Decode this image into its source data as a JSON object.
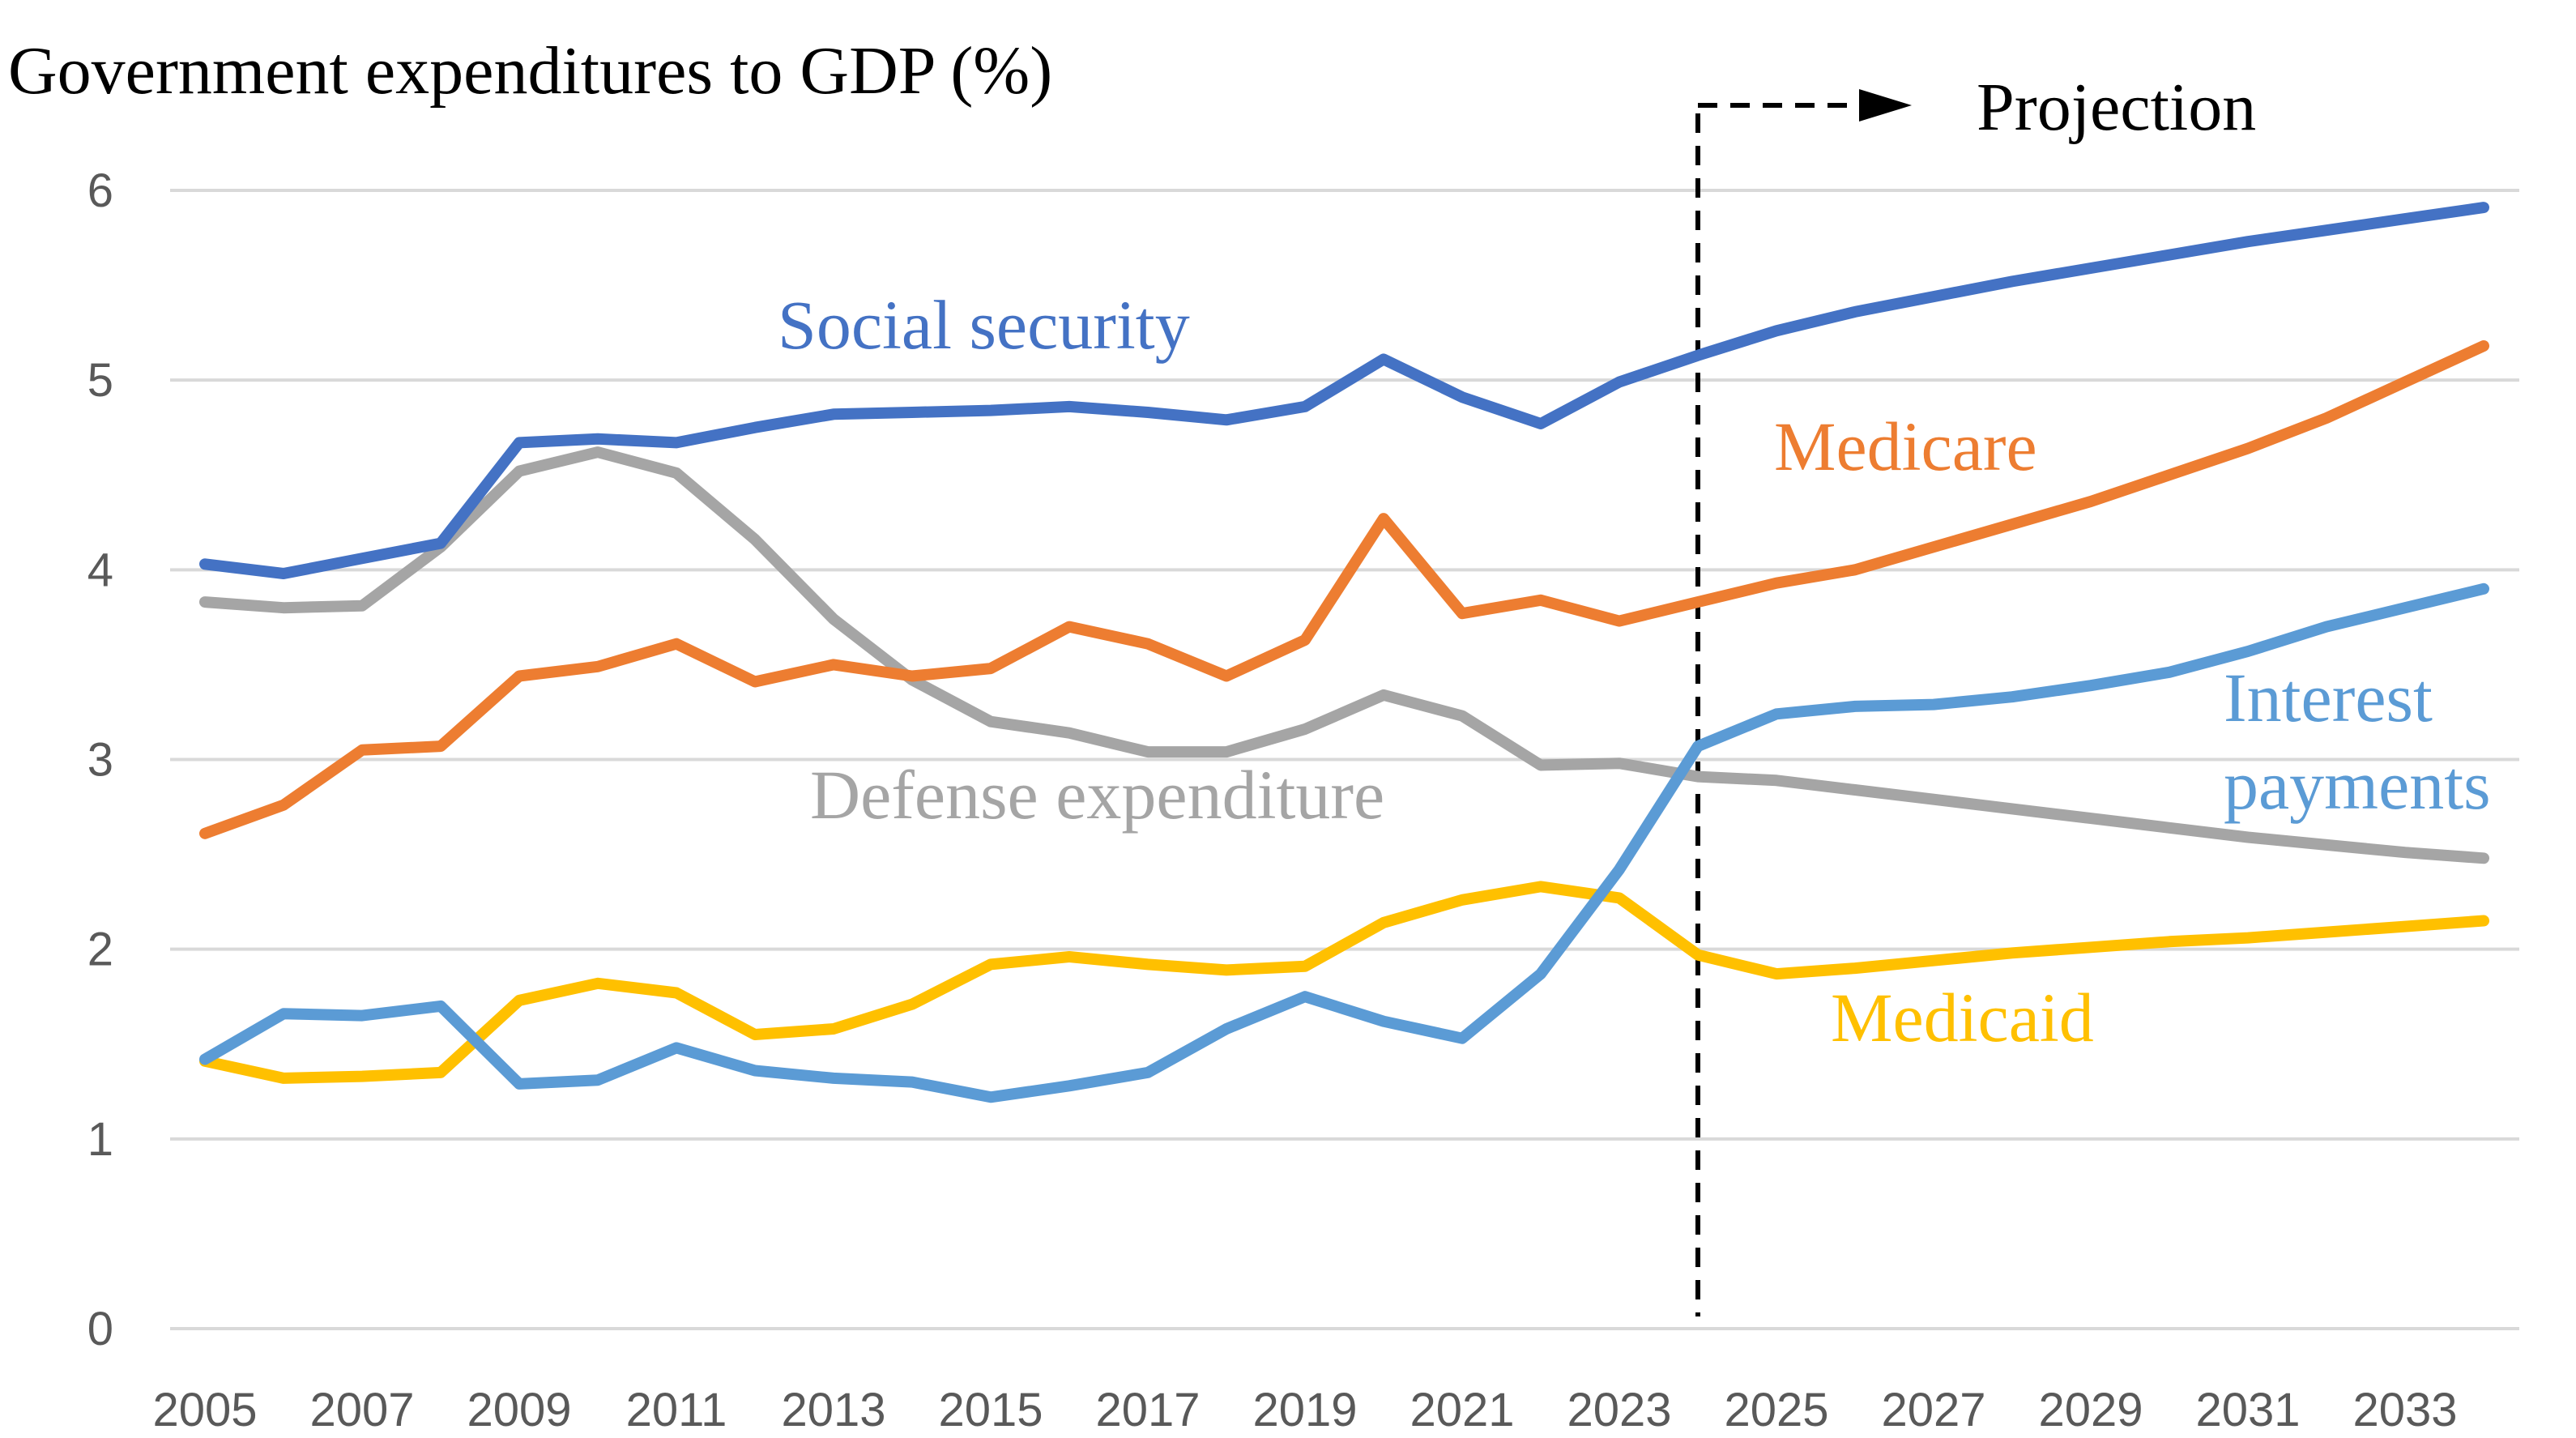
{
  "chart_data": {
    "type": "line",
    "title": "Government expenditures to GDP (%)",
    "xlabel": "",
    "ylabel": "",
    "x": [
      2005,
      2006,
      2007,
      2008,
      2009,
      2010,
      2011,
      2012,
      2013,
      2014,
      2015,
      2016,
      2017,
      2018,
      2019,
      2020,
      2021,
      2022,
      2023,
      2024,
      2025,
      2026,
      2027,
      2028,
      2029,
      2030,
      2031,
      2032,
      2033,
      2034
    ],
    "xticks": [
      2005,
      2007,
      2009,
      2011,
      2013,
      2015,
      2017,
      2019,
      2021,
      2023,
      2025,
      2027,
      2029,
      2031,
      2033
    ],
    "xlim": [
      2005,
      2034
    ],
    "ylim": [
      0,
      6
    ],
    "yticks": [
      0,
      1,
      2,
      3,
      4,
      5,
      6
    ],
    "grid": "horizontal",
    "legend": "none",
    "projection": {
      "start": 2024,
      "label": "Projection"
    },
    "series": [
      {
        "name": "Social security",
        "color": "#4472C4",
        "values": [
          4.03,
          3.98,
          4.06,
          4.14,
          4.67,
          4.69,
          4.67,
          4.75,
          4.82,
          4.83,
          4.84,
          4.86,
          4.83,
          4.79,
          4.86,
          5.11,
          4.91,
          4.77,
          4.99,
          5.13,
          5.26,
          5.36,
          5.44,
          5.52,
          5.59,
          5.66,
          5.73,
          5.79,
          5.85,
          5.91
        ]
      },
      {
        "name": "Medicare",
        "color": "#ED7D31",
        "values": [
          2.61,
          2.76,
          3.05,
          3.07,
          3.44,
          3.49,
          3.61,
          3.41,
          3.5,
          3.44,
          3.48,
          3.7,
          3.61,
          3.44,
          3.63,
          4.27,
          3.77,
          3.84,
          3.73,
          3.83,
          3.93,
          4.0,
          4.12,
          4.24,
          4.36,
          4.5,
          4.64,
          4.8,
          4.99,
          5.18
        ]
      },
      {
        "name": "Defense expenditure",
        "color": "#A5A5A5",
        "values": [
          3.83,
          3.8,
          3.81,
          4.12,
          4.52,
          4.62,
          4.51,
          4.16,
          3.74,
          3.42,
          3.2,
          3.14,
          3.04,
          3.04,
          3.16,
          3.34,
          3.23,
          2.97,
          2.98,
          2.91,
          2.89,
          2.84,
          2.79,
          2.74,
          2.69,
          2.64,
          2.59,
          2.55,
          2.51,
          2.48
        ]
      },
      {
        "name": "Interest payments",
        "color": "#5B9BD5",
        "values": [
          1.42,
          1.66,
          1.65,
          1.7,
          1.29,
          1.31,
          1.48,
          1.36,
          1.32,
          1.3,
          1.22,
          1.28,
          1.35,
          1.58,
          1.75,
          1.62,
          1.53,
          1.87,
          2.42,
          3.07,
          3.24,
          3.28,
          3.29,
          3.33,
          3.39,
          3.46,
          3.57,
          3.7,
          3.8,
          3.9
        ]
      },
      {
        "name": "Medicaid",
        "color": "#FFC000",
        "values": [
          1.41,
          1.32,
          1.33,
          1.35,
          1.73,
          1.82,
          1.77,
          1.55,
          1.58,
          1.71,
          1.92,
          1.96,
          1.92,
          1.89,
          1.91,
          2.14,
          2.26,
          2.33,
          2.27,
          1.97,
          1.87,
          1.9,
          1.94,
          1.98,
          2.01,
          2.04,
          2.06,
          2.09,
          2.12,
          2.15
        ]
      }
    ],
    "series_labels": [
      {
        "lines": [
          "Social security"
        ],
        "color": "#4472C4"
      },
      {
        "lines": [
          "Medicare"
        ],
        "color": "#ED7D31"
      },
      {
        "lines": [
          "Defense expenditure"
        ],
        "color": "#A5A5A5"
      },
      {
        "lines": [
          "Interest",
          "payments"
        ],
        "color": "#5B9BD5"
      },
      {
        "lines": [
          "Medicaid"
        ],
        "color": "#FFC000"
      }
    ]
  }
}
